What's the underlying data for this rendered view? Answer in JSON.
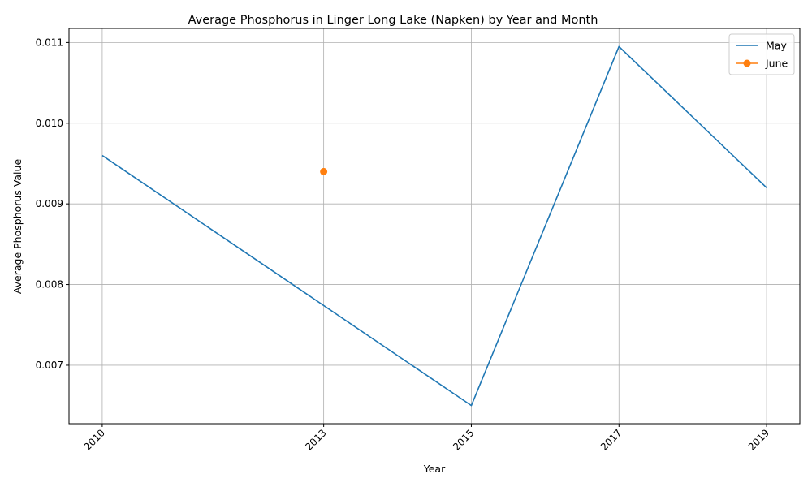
{
  "chart_data": {
    "type": "line",
    "title": "Average Phosphorus in Linger Long Lake (Napken) by Year and Month",
    "xlabel": "Year",
    "ylabel": "Average Phosphorus Value",
    "x_ticks": [
      2010,
      2013,
      2015,
      2017,
      2019
    ],
    "y_ticks": [
      "0.007",
      "0.008",
      "0.009",
      "0.010",
      "0.011"
    ],
    "xlim": [
      2009.55,
      2019.45
    ],
    "ylim": [
      0.006275,
      0.011175
    ],
    "grid": true,
    "legend_position": "top-right",
    "series": [
      {
        "name": "May",
        "color": "#1f77b4",
        "marker": false,
        "x": [
          2010,
          2015,
          2017,
          2019
        ],
        "values": [
          0.0096,
          0.0065,
          0.01095,
          0.0092
        ]
      },
      {
        "name": "June",
        "color": "#ff7f0e",
        "marker": true,
        "x": [
          2013
        ],
        "values": [
          0.0094
        ]
      }
    ]
  }
}
